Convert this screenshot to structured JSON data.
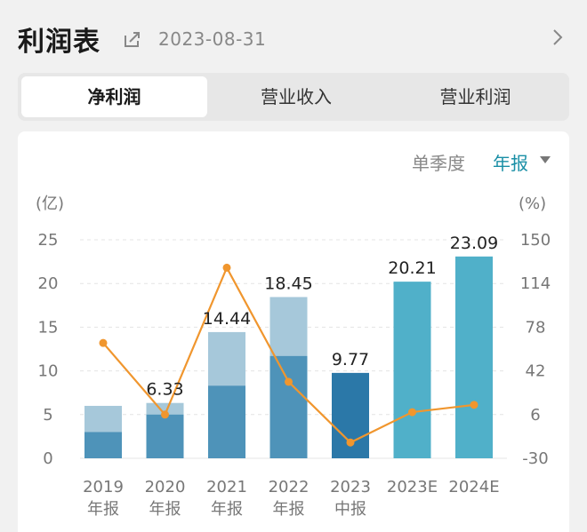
{
  "header": {
    "title": "利润表",
    "date": "2023-08-31",
    "share_icon": "share-icon",
    "chevron_icon": "chevron-right-icon"
  },
  "tabs": [
    {
      "label": "净利润",
      "active": true
    },
    {
      "label": "营业收入",
      "active": false
    },
    {
      "label": "营业利润",
      "active": false
    }
  ],
  "period": {
    "quarter_label": "单季度",
    "annual_label": "年报",
    "selected": "年报"
  },
  "colors": {
    "bar_light": "#a6c8da",
    "bar_mid": "#4e93b9",
    "bar_dark": "#2b78a8",
    "bar_forecast": "#50b0c9",
    "line": "#f0962e",
    "accent": "#1a8fa6"
  },
  "chart_data": {
    "type": "bar",
    "left_unit": "(亿)",
    "right_unit": "(%)",
    "left_ticks": [
      "25",
      "20",
      "15",
      "10",
      "5",
      "0"
    ],
    "right_ticks": [
      "150",
      "114",
      "78",
      "42",
      "6",
      "-30"
    ],
    "ylim_left": [
      0,
      25
    ],
    "ylim_right": [
      -30,
      150
    ],
    "categories": [
      [
        "2019",
        "年报"
      ],
      [
        "2020",
        "年报"
      ],
      [
        "2021",
        "年报"
      ],
      [
        "2022",
        "年报"
      ],
      [
        "2023",
        "中报"
      ],
      [
        "2023E"
      ],
      [
        "2024E"
      ]
    ],
    "series": [
      {
        "values": [
          6.0,
          6.33,
          14.44,
          18.45,
          9.77,
          20.21,
          23.09
        ]
      },
      {
        "values": [
          3.0,
          5.0,
          8.3,
          11.7,
          null,
          null,
          null
        ]
      },
      {
        "values": [
          65,
          6,
          127,
          33,
          -17,
          8,
          14
        ]
      }
    ],
    "value_labels": [
      "",
      "6.33",
      "14.44",
      "18.45",
      "9.77",
      "20.21",
      "23.09"
    ]
  }
}
